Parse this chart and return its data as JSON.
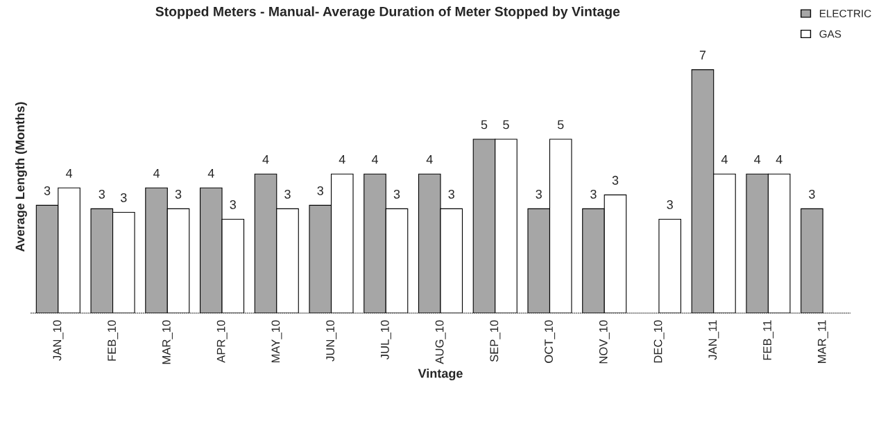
{
  "chart_data": {
    "type": "bar",
    "title": "Stopped Meters - Manual- Average Duration of Meter Stopped by Vintage",
    "xlabel": "Vintage",
    "ylabel": "Average Length (Months)",
    "legend": "top right",
    "tick_labels": "x",
    "categories": [
      "JAN_10",
      "FEB_10",
      "MAR_10",
      "APR_10",
      "MAY_10",
      "JUN_10",
      "JUL_10",
      "AUG_10",
      "SEP_10",
      "OCT_10",
      "NOV_10",
      "DEC_10",
      "JAN_11",
      "FEB_11",
      "MAR_11"
    ],
    "series": [
      {
        "name": "ELECTRIC",
        "color": "#a6a6a6",
        "values": [
          3.1,
          3.0,
          3.6,
          3.6,
          4.0,
          3.1,
          4.0,
          4.0,
          5.0,
          3.0,
          3.0,
          null,
          7.0,
          4.0,
          3.0
        ],
        "value_labels": [
          "3",
          "3",
          "4",
          "4",
          "4",
          "3",
          "4",
          "4",
          "5",
          "3",
          "3",
          null,
          "7",
          "4",
          "3"
        ]
      },
      {
        "name": "GAS",
        "color": "#ffffff",
        "values": [
          3.6,
          2.9,
          3.0,
          2.7,
          3.0,
          4.0,
          3.0,
          3.0,
          5.0,
          5.0,
          3.4,
          2.7,
          4.0,
          4.0,
          null
        ],
        "value_labels": [
          "4",
          "3",
          "3",
          "3",
          "3",
          "4",
          "3",
          "3",
          "5",
          "5",
          "3",
          "3",
          "4",
          "4",
          null
        ]
      }
    ]
  }
}
